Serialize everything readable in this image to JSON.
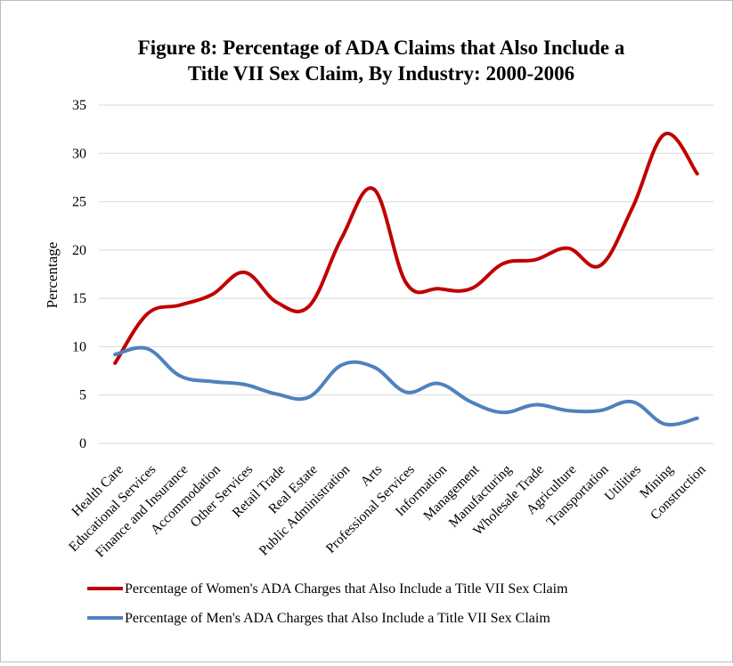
{
  "chart_data": {
    "type": "line",
    "title_line1": "Figure 8: Percentage of ADA Claims that Also Include a",
    "title_line2": "Title VII Sex Claim, By Industry: 2000-2006",
    "ylabel": "Percentage",
    "xlabel": "",
    "ylim": [
      0,
      35
    ],
    "yticks": [
      0,
      5,
      10,
      15,
      20,
      25,
      30,
      35
    ],
    "grid": true,
    "legend_position": "bottom",
    "categories": [
      "Health Care",
      "Educational Services",
      "Finance and Insurance",
      "Accommodation",
      "Other Services",
      "Retail Trade",
      "Real Estate",
      "Public Administration",
      "Arts",
      "Professional Services",
      "Information",
      "Management",
      "Manufacturing",
      "Wholesale Trade",
      "Agriculture",
      "Transportation",
      "Utilities",
      "Mining",
      "Construction"
    ],
    "series": [
      {
        "name": "Percentage of Women's ADA Charges that Also Include a Title VII Sex Claim",
        "color": "#c00000",
        "values": [
          8.3,
          13.4,
          14.3,
          15.4,
          17.7,
          14.6,
          14.2,
          21.2,
          26.3,
          16.6,
          16.0,
          16.0,
          18.6,
          19.0,
          20.2,
          18.4,
          24.4,
          32.0,
          27.9
        ]
      },
      {
        "name": "Percentage of Men's ADA Charges that Also Include a Title VII Sex Claim",
        "color": "#4f81bd",
        "values": [
          9.2,
          9.8,
          7.0,
          6.4,
          6.1,
          5.1,
          4.8,
          8.1,
          7.9,
          5.3,
          6.2,
          4.3,
          3.2,
          4.0,
          3.4,
          3.4,
          4.3,
          2.0,
          2.6
        ]
      }
    ]
  }
}
